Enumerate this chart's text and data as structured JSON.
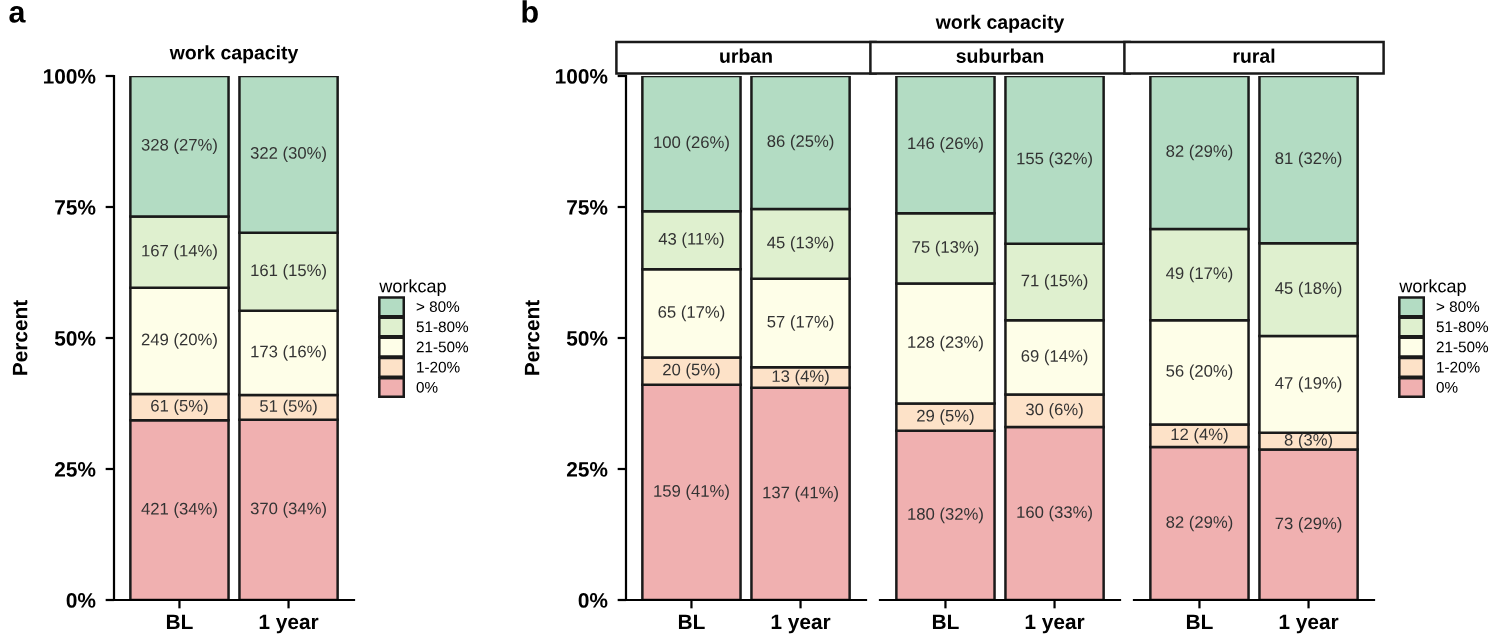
{
  "chart_data": [
    {
      "type": "bar",
      "stacked": true,
      "title": "work capacity",
      "ylabel": "Percent",
      "legend_title": "workcap",
      "legend": "right",
      "annotations": [
        "a"
      ],
      "categories": [
        "BL",
        "1 year"
      ],
      "ylim": [
        0,
        100
      ],
      "yticks": [
        {
          "value": 0,
          "label": "0%"
        },
        {
          "value": 25,
          "label": "25%"
        },
        {
          "value": 50,
          "label": "50%"
        },
        {
          "value": 75,
          "label": "75%"
        },
        {
          "value": 100,
          "label": "100%"
        }
      ],
      "grid": false,
      "series": [
        {
          "name": "0%",
          "color": "#f0b0b0",
          "values": [
            34.3,
            34.4
          ],
          "value_labels": [
            "421 (34%)",
            "370 (34%)"
          ]
        },
        {
          "name": "1-20%",
          "color": "#fde2c8",
          "values": [
            5.0,
            4.7
          ],
          "value_labels": [
            "61 (5%)",
            "51 (5%)"
          ]
        },
        {
          "name": "21-50%",
          "color": "#fefee8",
          "values": [
            20.3,
            16.1
          ],
          "value_labels": [
            "249 (20%)",
            "173 (16%)"
          ]
        },
        {
          "name": "51-80%",
          "color": "#dff0cf",
          "values": [
            13.6,
            14.9
          ],
          "value_labels": [
            "167 (14%)",
            "161 (15%)"
          ]
        },
        {
          "name": "> 80%",
          "color": "#b3dcc3",
          "values": [
            26.8,
            29.9
          ],
          "value_labels": [
            "328 (27%)",
            "322 (30%)"
          ]
        }
      ]
    },
    {
      "type": "bar",
      "stacked": true,
      "subtitle": "urban",
      "ylabel": "Percent",
      "annotations": [
        "b"
      ],
      "categories": [
        "BL",
        "1 year"
      ],
      "ylim": [
        0,
        100
      ],
      "yticks": [
        {
          "value": 0,
          "label": "0%"
        },
        {
          "value": 25,
          "label": "25%"
        },
        {
          "value": 50,
          "label": "50%"
        },
        {
          "value": 75,
          "label": "75%"
        },
        {
          "value": 100,
          "label": "100%"
        }
      ],
      "grid": false,
      "series": [
        {
          "color": "#f0b0b0",
          "values": [
            41.1,
            40.5
          ],
          "value_labels": [
            "159 (41%)",
            "137 (41%)"
          ]
        },
        {
          "color": "#fde2c8",
          "values": [
            5.2,
            3.9
          ],
          "value_labels": [
            "20 (5%)",
            "13 (4%)"
          ]
        },
        {
          "color": "#fefee8",
          "values": [
            16.8,
            16.9
          ],
          "value_labels": [
            "65 (17%)",
            "57 (17%)"
          ]
        },
        {
          "color": "#dff0cf",
          "values": [
            11.1,
            13.3
          ],
          "value_labels": [
            "43 (11%)",
            "45 (13%)"
          ]
        },
        {
          "color": "#b3dcc3",
          "values": [
            25.8,
            25.4
          ],
          "value_labels": [
            "100 (26%)",
            "86 (25%)"
          ]
        }
      ]
    },
    {
      "type": "bar",
      "stacked": true,
      "title": "work capacity",
      "subtitle": "suburban",
      "tick_labels": "x",
      "categories": [
        "BL",
        "1 year"
      ],
      "ylim": [
        0,
        100
      ],
      "grid": false,
      "series": [
        {
          "color": "#f0b0b0",
          "values": [
            32.3,
            33.0
          ],
          "value_labels": [
            "180 (32%)",
            "160 (33%)"
          ]
        },
        {
          "color": "#fde2c8",
          "values": [
            5.2,
            6.2
          ],
          "value_labels": [
            "29 (5%)",
            "30 (6%)"
          ]
        },
        {
          "color": "#fefee8",
          "values": [
            22.9,
            14.2
          ],
          "value_labels": [
            "128 (23%)",
            "69 (14%)"
          ]
        },
        {
          "color": "#dff0cf",
          "values": [
            13.4,
            14.6
          ],
          "value_labels": [
            "75 (13%)",
            "71 (15%)"
          ]
        },
        {
          "color": "#b3dcc3",
          "values": [
            26.2,
            32.0
          ],
          "value_labels": [
            "146 (26%)",
            "155 (32%)"
          ]
        }
      ]
    },
    {
      "type": "bar",
      "stacked": true,
      "subtitle": "rural",
      "tick_labels": "x",
      "legend_title": "workcap",
      "legend": "right",
      "categories": [
        "BL",
        "1 year"
      ],
      "ylim": [
        0,
        100
      ],
      "grid": false,
      "series": [
        {
          "name": "0%",
          "color": "#f0b0b0",
          "values": [
            29.2,
            28.7
          ],
          "value_labels": [
            "82 (29%)",
            "73 (29%)"
          ]
        },
        {
          "name": "1-20%",
          "color": "#fde2c8",
          "values": [
            4.3,
            3.2
          ],
          "value_labels": [
            "12 (4%)",
            "8 (3%)"
          ]
        },
        {
          "name": "21-50%",
          "color": "#fefee8",
          "values": [
            19.9,
            18.5
          ],
          "value_labels": [
            "56 (20%)",
            "47 (19%)"
          ]
        },
        {
          "name": "51-80%",
          "color": "#dff0cf",
          "values": [
            17.4,
            17.7
          ],
          "value_labels": [
            "49 (17%)",
            "45 (18%)"
          ]
        },
        {
          "name": "> 80%",
          "color": "#b3dcc3",
          "values": [
            29.2,
            31.9
          ],
          "value_labels": [
            "82 (29%)",
            "81 (32%)"
          ]
        }
      ]
    }
  ]
}
